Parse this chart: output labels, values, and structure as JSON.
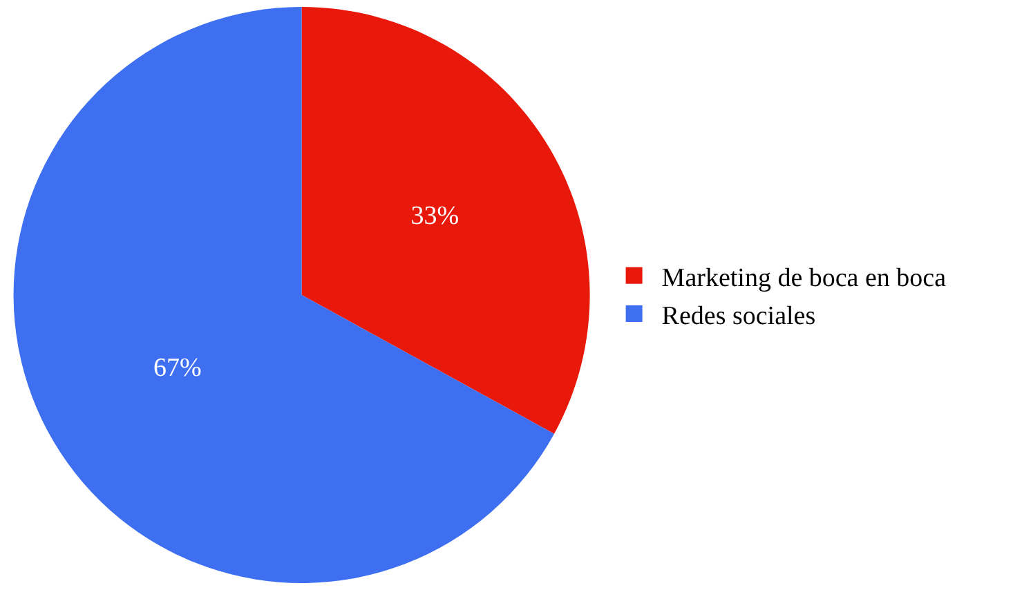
{
  "chart_data": {
    "type": "pie",
    "categories": [
      "Marketing de boca en boca",
      "Redes sociales"
    ],
    "values": [
      33,
      67
    ],
    "colors": [
      "#e8180a",
      "#3e6ff0"
    ],
    "value_labels": [
      "33%",
      "67%"
    ],
    "legend": "right"
  }
}
